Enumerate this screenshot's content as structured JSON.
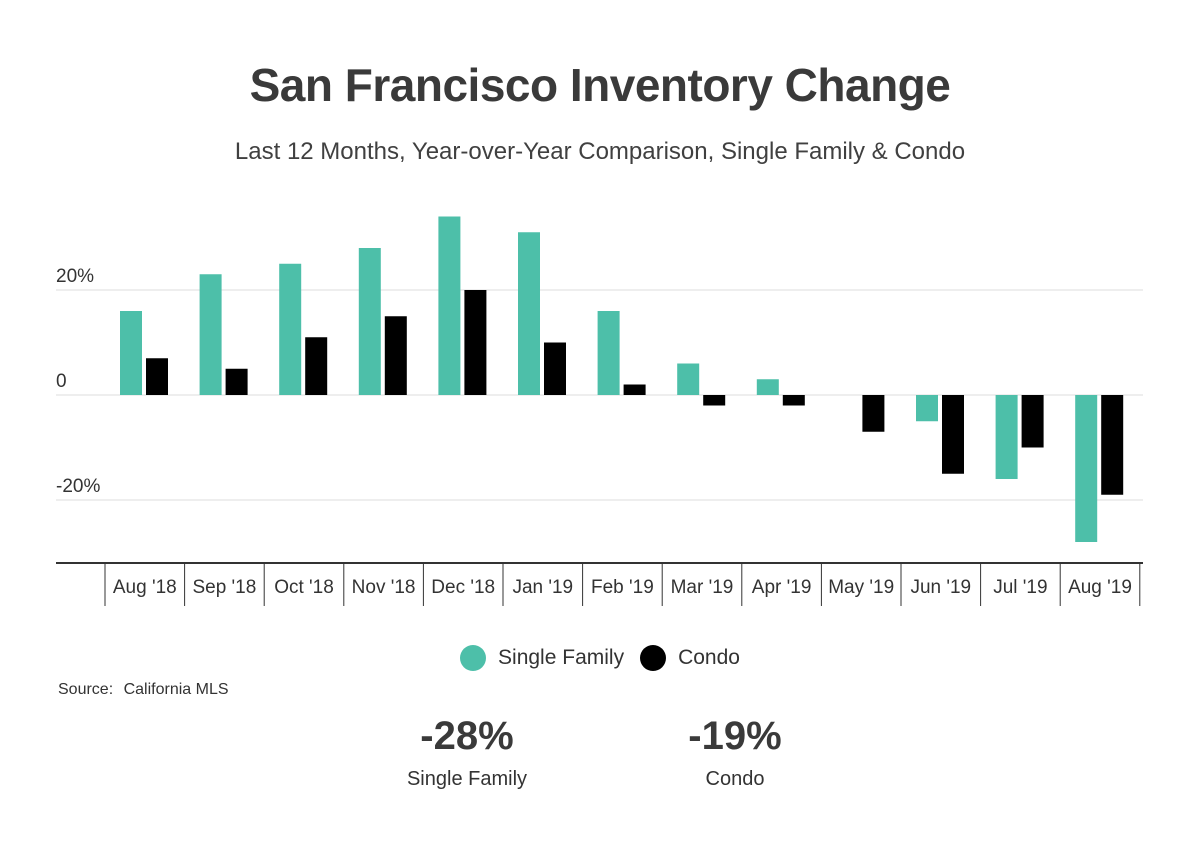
{
  "colors": {
    "single_family": "#4dbfa9",
    "condo": "#000000",
    "grid": "#dddddd",
    "axis": "#333333"
  },
  "chart_data": {
    "type": "bar",
    "title": "San Francisco Inventory Change",
    "subtitle": "Last 12 Months, Year-over-Year Comparison, Single Family & Condo",
    "categories": [
      "Aug '18",
      "Sep '18",
      "Oct '18",
      "Nov '18",
      "Dec '18",
      "Jan '19",
      "Feb '19",
      "Mar '19",
      "Apr '19",
      "May '19",
      "Jun '19",
      "Jul '19",
      "Aug '19"
    ],
    "series": [
      {
        "name": "Single Family",
        "values": [
          16,
          23,
          25,
          28,
          34,
          31,
          16,
          6,
          3,
          0,
          -5,
          -16,
          -28
        ]
      },
      {
        "name": "Condo",
        "values": [
          7,
          5,
          11,
          15,
          20,
          10,
          2,
          -2,
          -2,
          -7,
          -15,
          -10,
          -19
        ]
      }
    ],
    "yticks": [
      {
        "value": 20,
        "label": "20%"
      },
      {
        "value": 0,
        "label": "0"
      },
      {
        "value": -20,
        "label": "-20%"
      }
    ],
    "ylim": [
      -32,
      34
    ],
    "grid": true,
    "legend_position": "bottom-center"
  },
  "source": {
    "label": "Source:",
    "value": "California MLS"
  },
  "stats": [
    {
      "value": "-28%",
      "label": "Single Family"
    },
    {
      "value": "-19%",
      "label": "Condo"
    }
  ]
}
